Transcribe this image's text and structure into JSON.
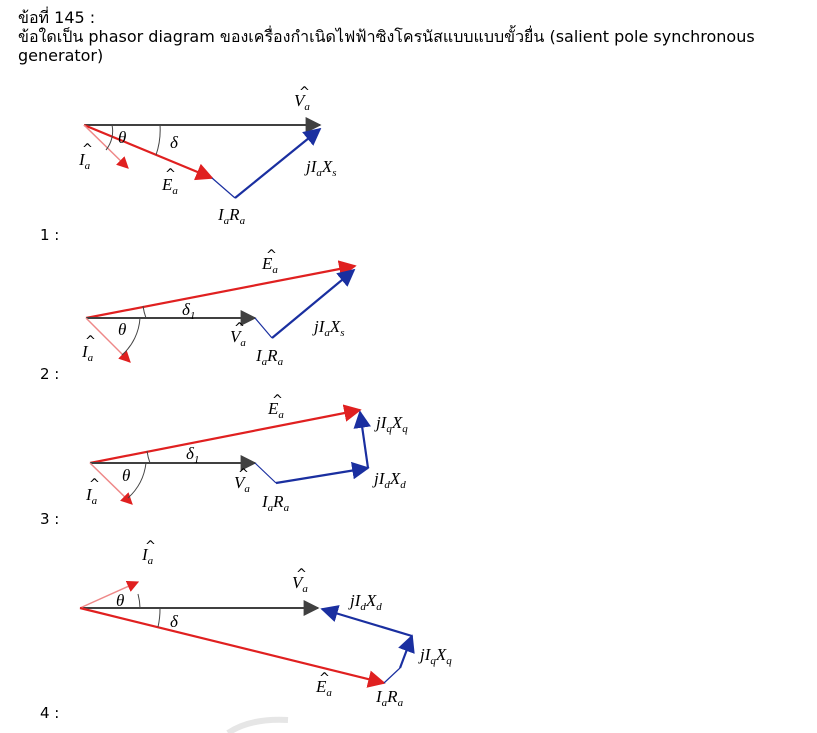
{
  "question": {
    "number": "ข้อที่ 145 :",
    "text": "ข้อใดเป็น phasor diagram ของเครื่องกำเนิดไฟฟ้าซิงโครนัสแบบแบบขั้วยื่น (salient pole synchronous generator)"
  },
  "options": [
    {
      "label": "1 :",
      "labels": {
        "va": "V",
        "va_sub": "a",
        "ia": "I",
        "ia_sub": "a",
        "ea": "E",
        "ea_sub": "a",
        "theta": "θ",
        "delta": "δ",
        "iara": "I",
        "iara_sub1": "a",
        "iara_r": "R",
        "iara_sub2": "a",
        "jx": "jI",
        "jx_sub1": "a",
        "jx_x": "X",
        "jx_sub2": "s"
      }
    },
    {
      "label": "2 :",
      "labels": {
        "ea": "E",
        "ea_sub": "a",
        "delta": "δ",
        "delta_sub": "1",
        "theta": "θ",
        "va": "V",
        "va_sub": "a",
        "ia": "I",
        "ia_sub": "a",
        "iara": "I",
        "iara_sub1": "a",
        "iara_r": "R",
        "iara_sub2": "a",
        "jx": "jI",
        "jx_sub1": "a",
        "jx_x": "X",
        "jx_sub2": "s"
      }
    },
    {
      "label": "3 :",
      "labels": {
        "ea": "E",
        "ea_sub": "a",
        "delta": "δ",
        "delta_sub": "1",
        "theta": "θ",
        "va": "V",
        "va_sub": "a",
        "ia": "I",
        "ia_sub": "a",
        "iara": "I",
        "iara_sub1": "a",
        "iara_r": "R",
        "iara_sub2": "a",
        "jxq": "jI",
        "jxq_sub1": "q",
        "jxq_x": "X",
        "jxq_sub2": "q",
        "jxd": "jI",
        "jxd_sub1": "d",
        "jxd_x": "X",
        "jxd_sub2": "d"
      }
    },
    {
      "label": "4 :",
      "labels": {
        "ia": "I",
        "ia_sub": "a",
        "theta": "θ",
        "delta": "δ",
        "va": "V",
        "va_sub": "a",
        "ea": "E",
        "ea_sub": "a",
        "iara": "I",
        "iara_sub1": "a",
        "iara_r": "R",
        "iara_sub2": "a",
        "jxq": "jI",
        "jxq_sub1": "q",
        "jxq_x": "X",
        "jxq_sub2": "q",
        "jxd": "jI",
        "jxd_sub1": "d",
        "jxd_x": "X",
        "jxd_sub2": "d"
      }
    }
  ],
  "colors": {
    "red": "#e02020",
    "blue": "#1a2fa0",
    "gray": "#404040"
  }
}
